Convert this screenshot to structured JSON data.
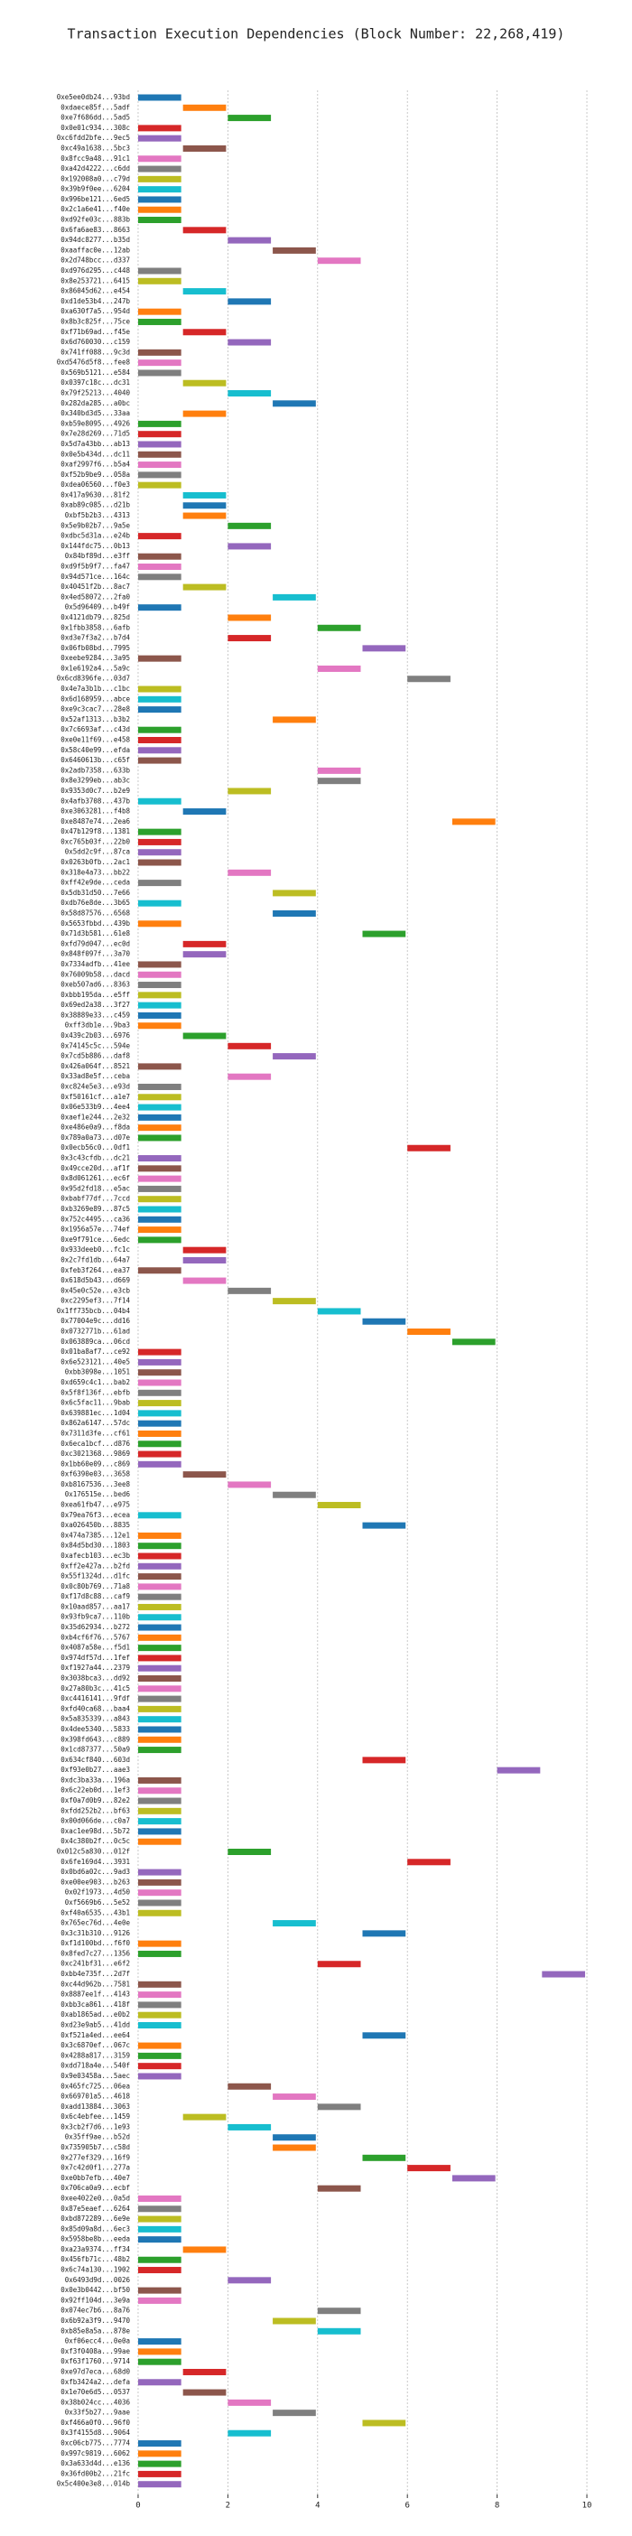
{
  "chart_data": {
    "type": "barh",
    "title": "Transaction Execution Dependencies (Block Number: 22,268,419)",
    "colors": [
      "#1f77b4",
      "#ff7f0e",
      "#2ca02c",
      "#d62728",
      "#9467bd",
      "#8c564b",
      "#e377c2",
      "#7f7f7f",
      "#bcbd22",
      "#17becf"
    ],
    "xlim": [
      -0.1,
      10.1
    ],
    "xticks": [
      0,
      2,
      4,
      6,
      8,
      10
    ],
    "grid": true,
    "categories": [
      "0xe5ee0db24...93bd",
      "0xdaece85f...5adf",
      "0xe7f686dd...5ad5",
      "0x0e01c934...308c",
      "0xc6fdd2bfe...9ec5",
      "0xc49a1638...5bc3",
      "0x8fcc9a48...91c1",
      "0xa42d4222...c6dd",
      "0x192008a0...c79d",
      "0x39b9f0ee...6204",
      "0x996be121...6ed5",
      "0x2c1a6e41...f40e",
      "0xd92fe03c...883b",
      "0x6fa6ae83...8663",
      "0x94dc8277...b35d",
      "0xaaffac0e...12ab",
      "0x2d748bcc...d337",
      "0xd976d295...c448",
      "0x8e253721...6415",
      "0x86045d62...e454",
      "0xd1de53b4...247b",
      "0xa630f7a5...954d",
      "0x8b3c825f...75ce",
      "0xf71b69ad...f45e",
      "0x6d760030...c159",
      "0x741ff088...9c3d",
      "0xd5476d5f8...fee8",
      "0x569b5121...e584",
      "0x0397c18c...dc31",
      "0x79f25213...4040",
      "0x282da285...a0bc",
      "0x340bd3d5...33aa",
      "0xb59e8095...4926",
      "0x7e28d269...71d5",
      "0x5d7a43bb...ab13",
      "0x0e5b434d...dc11",
      "0xaf2997f6...b5a4",
      "0xf52b9be9...058a",
      "0xdea06560...f0e3",
      "0x417a9630...81f2",
      "0xab89c085...d21b",
      "0xbf5b2b3...4313",
      "0x5e9b02b7...9a5e",
      "0xdbc5d31a...e24b",
      "0x144fdc75...0b13",
      "0x84bf89d...e3ff",
      "0xd9f5b9f7...fa47",
      "0x94d571ce...164c",
      "0x40451f2b...8ac7",
      "0x4ed58072...2fa0",
      "0x5d96409...b49f",
      "0x4121db79...825d",
      "0x1fbb3858...6afb",
      "0xd3e7f3a2...b7d4",
      "0x06fb08bd...7995",
      "0xeebe9284...3a95",
      "0x1e6192a4...5a9c",
      "0x6cd8396fe...03d7",
      "0x4e7a3b1b...c1bc",
      "0x6d168959...abce",
      "0xe9c3cac7...28e8",
      "0x52af1313...b3b2",
      "0x7c6693af...c43d",
      "0xe0e11f69...e458",
      "0x58c40e99...efda",
      "0x6460613b...c65f",
      "0x2adb7358...633b",
      "0x8e3299eb...ab3c",
      "0x9353d0c7...b2e9",
      "0x4afb3708...437b",
      "0xe3063281...f4b8",
      "0xe8487e74...2ea6",
      "0x47b129f8...1381",
      "0xc765b03f...22b0",
      "0x5dd2c9f...87ca",
      "0x0263b0fb...2ac1",
      "0x318e4a73...bb22",
      "0xff42e9de...ceda",
      "0x5db31d50...7e66",
      "0xdb76e8de...3b65",
      "0x58d87576...6568",
      "0x5653fbbd...439b",
      "0x71d3b581...61e8",
      "0xfd79d047...ec0d",
      "0x848f097f...3a70",
      "0x7334adfb...41ee",
      "0x76009b58...dacd",
      "0xeb507ad6...8363",
      "0xbbb195da...e5ff",
      "0x69ed2a38...3f27",
      "0x38889e33...c459",
      "0xff3db1e...9ba3",
      "0x439c2b03...6976",
      "0x74145c5c...594e",
      "0x7cd5b886...daf8",
      "0x426a064f...8521",
      "0x33ad8e5f...ceba",
      "0xc824e5e3...e93d",
      "0xf50161cf...a1e7",
      "0x06e533b9...4ee4",
      "0xaef1e244...2e32",
      "0xe486e0a9...f8da",
      "0x789a0a73...d07e",
      "0x0ecb56c0...0df1",
      "0x3c43cfdb...dc21",
      "0x49cce20d...af1f",
      "0x8d061261...ec6f",
      "0x95d2fd18...e5ac",
      "0xbabf77df...7ccd",
      "0xb3269e89...87c5",
      "0x752c4495...ca36",
      "0x1956a57e...74ef",
      "0xe9f791ce...6edc",
      "0x933deeb0...fc1c",
      "0x2c7fd1db...64a7",
      "0xfeb3f264...ea37",
      "0x618d5b43...d669",
      "0x45e0c52e...e3cb",
      "0xc2295ef3...7f14",
      "0x1ff735bcb...04b4",
      "0x77004e9c...dd16",
      "0x0732771b...61ad",
      "0x063889ca...06cd",
      "0x01ba8af7...ce92",
      "0x6e523121...40e5",
      "0xbb3098e...1051",
      "0xd659c4c1...bab2",
      "0x5f8f136f...ebfb",
      "0x6c5fac11...9bab",
      "0x639881ec...1d04",
      "0x862a6147...57dc",
      "0x7311d3fe...cf61",
      "0x6eca1bcf...d876",
      "0xc3021368...9869",
      "0x1bb60e09...c869",
      "0xf6390e03...3658",
      "0xb8167536...3ee8",
      "0x176515e...bed6",
      "0xea61fb47...e975",
      "0x79ea76f3...ecea",
      "0xa026450b...8835",
      "0x474a7385...12e1",
      "0x84d5bd30...1803",
      "0xafecb103...ec3b",
      "0xff2e427a...b2fd",
      "0x55f1324d...d1fc",
      "0x0c80b769...71a8",
      "0xf17d8c88...caf9",
      "0x10aad857...aa17",
      "0x93fb9ca7...110b",
      "0x35d62934...b272",
      "0xb4cf6f76...5767",
      "0x4087a58e...f5d1",
      "0x974df57d...1fef",
      "0xf1927a44...2379",
      "0x3038bca3...dd92",
      "0x27a80b3c...41c5",
      "0xc4416141...9fdf",
      "0xfd40ca68...baa4",
      "0x5a835339...a843",
      "0x4dee5340...5833",
      "0x398fd643...c889",
      "0x1cd87377...50a9",
      "0x634cf840...603d",
      "0xf93e0b27...aae3",
      "0xdc3ba33a...196a",
      "0x6c22eb0d...1ef3",
      "0xf0a7d0b9...82e2",
      "0xfdd252b2...bf63",
      "0x00d066de...c0a7",
      "0xac1ee98d...5b72",
      "0x4c380b2f...0c5c",
      "0x012c5a830...012f",
      "0x6fe169d4...3931",
      "0x0bd6a02c...9ad3",
      "0xe00ee903...b263",
      "0x02f1973...4d50",
      "0xf5669b6...5e52",
      "0xf40a6535...43b1",
      "0x765ec76d...4e0e",
      "0x3c31b310...9126",
      "0xf1d100bd...f6f0",
      "0x8fed7c27...1356",
      "0xc241bf31...e6f2",
      "0xbb4e735f...2d7f",
      "0xc44d962b...7581",
      "0x8887ee1f...4143",
      "0xbb3ca861...418f",
      "0xab1865ad...e0b2",
      "0xd23e9ab5...41dd",
      "0xf521a4ed...ee64",
      "0x3c6870ef...067c",
      "0x4288a817...3159",
      "0xdd718a4e...540f",
      "0x9e03458a...5aec",
      "0x465fc725...06ea",
      "0x669701a5...4618",
      "0xadd13884...3063",
      "0x6c4ebfee...1459",
      "0x3cb2f7d6...1e93",
      "0x35ff9ae...b52d",
      "0x735905b7...c58d",
      "0x277ef329...16f9",
      "0x7c42d0f1...277a",
      "0xe0bb7efb...40e7",
      "0x706ca0a9...ecbf",
      "0xee4022e0...0a5d",
      "0x87e5eaef...6264",
      "0xbd872289...6e9e",
      "0x85d09a8d...6ec3",
      "0x5958be8b...eeda",
      "0xa23a9374...ff34",
      "0x456fb71c...48b2",
      "0x6c74a130...1902",
      "0x6493d9d...0026",
      "0x0e3b0442...bf50",
      "0x92ff104d...3e9a",
      "0x074ec7b6...8a76",
      "0x6b92a3f9...9470",
      "0xb85e8a5a...878e",
      "0xf06ecc4...0e0a",
      "0xf3f0408a...99ae",
      "0xf63f1760...9714",
      "0xe97d7eca...68d0",
      "0xfb3424a2...defa",
      "0x1e70e6d5...0537",
      "0x38b024cc...4036",
      "0x33f5b27...9aae",
      "0xf466a0f0...96f0",
      "0x3f4155d8...9064",
      "0xc06cb775...7774",
      "0x997c9819...6062",
      "0x3a633d4d...e136",
      "0x36fd00b2...21fc",
      "0x5c400e3e8...014b"
    ],
    "values": [
      0,
      1,
      2,
      0,
      0,
      1,
      0,
      0,
      0,
      0,
      0,
      0,
      0,
      1,
      2,
      3,
      4,
      0,
      0,
      1,
      2,
      0,
      0,
      1,
      2,
      0,
      0,
      0,
      1,
      2,
      3,
      1,
      0,
      0,
      0,
      0,
      0,
      0,
      0,
      1,
      1,
      1,
      2,
      0,
      2,
      0,
      0,
      0,
      1,
      3,
      0,
      2,
      4,
      2,
      5,
      0,
      4,
      6,
      0,
      0,
      0,
      3,
      0,
      0,
      0,
      0,
      4,
      4,
      2,
      0,
      1,
      7,
      0,
      0,
      0,
      0,
      2,
      0,
      3,
      0,
      3,
      0,
      5,
      1,
      1,
      0,
      0,
      0,
      0,
      0,
      0,
      0,
      1,
      2,
      3,
      0,
      2,
      0,
      0,
      0,
      0,
      0,
      0,
      6,
      0,
      0,
      0,
      0,
      0,
      0,
      0,
      0,
      0,
      1,
      1,
      0,
      1,
      2,
      3,
      4,
      5,
      6,
      7,
      0,
      0,
      0,
      0,
      0,
      0,
      0,
      0,
      0,
      0,
      0,
      0,
      1,
      2,
      3,
      4,
      0,
      5,
      0,
      0,
      0,
      0,
      0,
      0,
      0,
      0,
      0,
      0,
      0,
      0,
      0,
      0,
      0,
      0,
      0,
      0,
      0,
      0,
      0,
      0,
      5,
      8,
      0,
      0,
      0,
      0,
      0,
      0,
      0,
      2,
      6,
      0,
      0,
      0,
      0,
      0,
      3,
      5,
      0,
      0,
      4,
      9,
      0,
      0,
      0,
      0,
      0,
      5,
      0,
      0,
      0,
      0,
      2,
      3,
      4,
      1,
      2,
      3,
      3,
      5,
      6,
      7,
      4,
      0,
      0,
      0,
      0,
      0,
      1,
      0,
      0,
      2,
      0,
      0,
      4,
      3,
      4,
      0,
      0,
      0,
      1,
      0,
      1,
      2,
      3,
      5,
      2,
      0,
      0,
      0,
      0,
      0
    ]
  }
}
